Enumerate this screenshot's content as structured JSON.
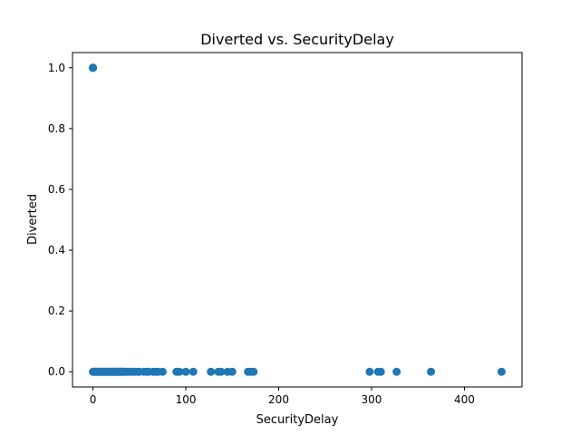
{
  "chart_data": {
    "type": "scatter",
    "title": "Diverted vs. SecurityDelay",
    "xlabel": "SecurityDelay",
    "ylabel": "Diverted",
    "xlim": [
      -22,
      462
    ],
    "ylim": [
      -0.05,
      1.05
    ],
    "xticks": [
      0,
      100,
      200,
      300,
      400
    ],
    "xtick_labels": [
      "0",
      "100",
      "200",
      "300",
      "400"
    ],
    "yticks": [
      0.0,
      0.2,
      0.4,
      0.6,
      0.8,
      1.0
    ],
    "ytick_labels": [
      "0.0",
      "0.2",
      "0.4",
      "0.6",
      "0.8",
      "1.0"
    ],
    "grid": false,
    "legend": "none",
    "marker_color": "#1f77b4",
    "x": [
      0,
      0,
      0,
      0,
      1,
      2,
      3,
      4,
      5,
      6,
      7,
      8,
      9,
      10,
      11,
      12,
      13,
      14,
      15,
      16,
      17,
      18,
      19,
      20,
      21,
      22,
      23,
      24,
      25,
      26,
      27,
      28,
      29,
      30,
      31,
      32,
      33,
      34,
      36,
      38,
      40,
      42,
      45,
      48,
      50,
      55,
      58,
      60,
      65,
      68,
      70,
      75,
      90,
      93,
      100,
      108,
      127,
      135,
      138,
      145,
      150,
      167,
      170,
      173,
      298,
      307,
      310,
      327,
      364,
      440
    ],
    "y": [
      1,
      1,
      1,
      0,
      0,
      0,
      0,
      0,
      0,
      0,
      0,
      0,
      0,
      0,
      0,
      0,
      0,
      0,
      0,
      0,
      0,
      0,
      0,
      0,
      0,
      0,
      0,
      0,
      0,
      0,
      0,
      0,
      0,
      0,
      0,
      0,
      0,
      0,
      0,
      0,
      0,
      0,
      0,
      0,
      0,
      0,
      0,
      0,
      0,
      0,
      0,
      0,
      0,
      0,
      0,
      0,
      0,
      0,
      0,
      0,
      0,
      0,
      0,
      0,
      0,
      0,
      0,
      0,
      0,
      0
    ]
  }
}
